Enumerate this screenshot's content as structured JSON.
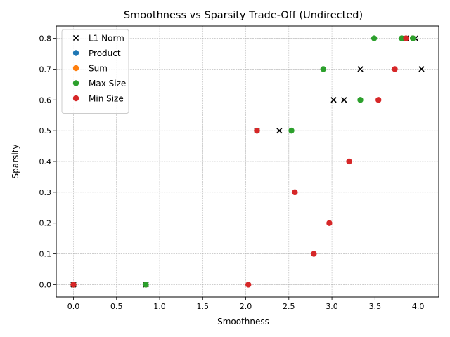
{
  "chart_data": {
    "type": "scatter",
    "title": "Smoothness vs Sparsity Trade-Off (Undirected)",
    "xlabel": "Smoothness",
    "ylabel": "Sparsity",
    "xlim": [
      -0.2,
      4.24
    ],
    "ylim": [
      -0.04,
      0.84
    ],
    "xticks": [
      0.0,
      0.5,
      1.0,
      1.5,
      2.0,
      2.5,
      3.0,
      3.5,
      4.0
    ],
    "xtick_labels": [
      "0.0",
      "0.5",
      "1.0",
      "1.5",
      "2.0",
      "2.5",
      "3.0",
      "3.5",
      "4.0"
    ],
    "yticks": [
      0.0,
      0.1,
      0.2,
      0.3,
      0.4,
      0.5,
      0.6,
      0.7,
      0.8
    ],
    "ytick_labels": [
      "0.0",
      "0.1",
      "0.2",
      "0.3",
      "0.4",
      "0.5",
      "0.6",
      "0.7",
      "0.8"
    ],
    "grid": true,
    "legend_position": "top-left",
    "series": [
      {
        "name": "L1 Norm",
        "marker": "x",
        "color": "#000000",
        "points": [
          [
            0.0,
            0.0
          ],
          [
            0.84,
            0.0
          ],
          [
            2.13,
            0.5
          ],
          [
            2.39,
            0.5
          ],
          [
            3.02,
            0.6
          ],
          [
            3.14,
            0.6
          ],
          [
            3.33,
            0.7
          ],
          [
            4.04,
            0.7
          ],
          [
            3.86,
            0.8
          ],
          [
            3.97,
            0.8
          ]
        ]
      },
      {
        "name": "Product",
        "marker": "o",
        "color": "#1f77b4",
        "points": [
          [
            0.0,
            0.0
          ],
          [
            0.84,
            0.0
          ],
          [
            2.13,
            0.5
          ],
          [
            3.94,
            0.8
          ]
        ]
      },
      {
        "name": "Sum",
        "marker": "o",
        "color": "#ff7f0e",
        "points": [
          [
            0.0,
            0.0
          ],
          [
            0.84,
            0.0
          ],
          [
            2.13,
            0.5
          ],
          [
            3.94,
            0.8
          ]
        ]
      },
      {
        "name": "Max Size",
        "marker": "o",
        "color": "#2ca02c",
        "points": [
          [
            0.0,
            0.0
          ],
          [
            0.84,
            0.0
          ],
          [
            2.53,
            0.5
          ],
          [
            2.9,
            0.7
          ],
          [
            3.33,
            0.6
          ],
          [
            3.49,
            0.8
          ],
          [
            3.81,
            0.8
          ],
          [
            3.94,
            0.8
          ]
        ]
      },
      {
        "name": "Min Size",
        "marker": "o",
        "color": "#d62728",
        "points": [
          [
            0.0,
            0.0
          ],
          [
            2.03,
            0.0
          ],
          [
            2.79,
            0.1
          ],
          [
            2.97,
            0.2
          ],
          [
            2.57,
            0.3
          ],
          [
            3.2,
            0.4
          ],
          [
            2.13,
            0.5
          ],
          [
            3.54,
            0.6
          ],
          [
            3.73,
            0.7
          ],
          [
            3.86,
            0.8
          ]
        ]
      }
    ]
  }
}
